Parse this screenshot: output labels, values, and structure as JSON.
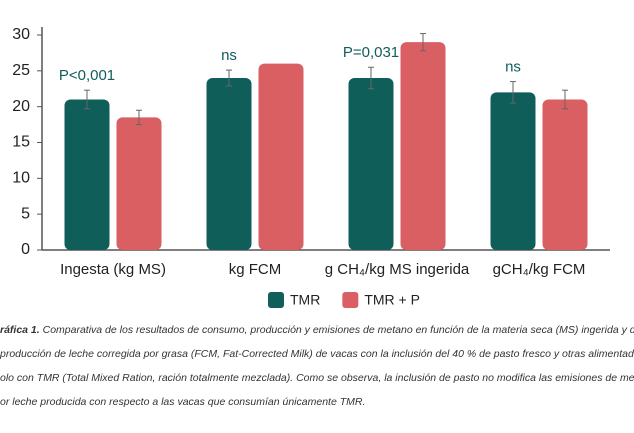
{
  "chart_data": {
    "type": "bar",
    "categories": [
      "Ingesta (kg MS)",
      "kg FCM",
      "g CH₄/kg MS ingerida",
      "gCH₄/kg FCM"
    ],
    "series": [
      {
        "name": "TMR",
        "color": "#0f5e5a",
        "values": [
          21,
          24,
          24,
          22
        ],
        "errors": [
          1.3,
          1.1,
          1.5,
          1.5
        ]
      },
      {
        "name": "TMR + P",
        "color": "#d95f63",
        "values": [
          18.5,
          26,
          29,
          21
        ],
        "errors": [
          1,
          null,
          1.2,
          1.3
        ]
      }
    ],
    "annotations": [
      "P<0,001",
      "ns",
      "P=0,031",
      "ns"
    ],
    "ylim": [
      0,
      30
    ],
    "yticks": [
      0,
      5,
      10,
      15,
      20,
      25,
      30
    ],
    "grid": false,
    "caption": {
      "label": "ráfica 1.",
      "lines": [
        " Comparativa de los resultados de consumo, producción y emisiones de metano en función de la materia seca (MS) ingerida y de",
        "producción de leche corregida por grasa (FCM, Fat-Corrected Milk) de vacas con la inclusión del 40 % de pasto fresco y otras alimentadas",
        "olo con TMR (Total Mixed Ration, ración totalmente mezclada). Como se observa, la inclusión de pasto no modifica las emisiones de metano",
        "or leche producida con respecto a las vacas que consumían únicamente TMR."
      ]
    }
  }
}
